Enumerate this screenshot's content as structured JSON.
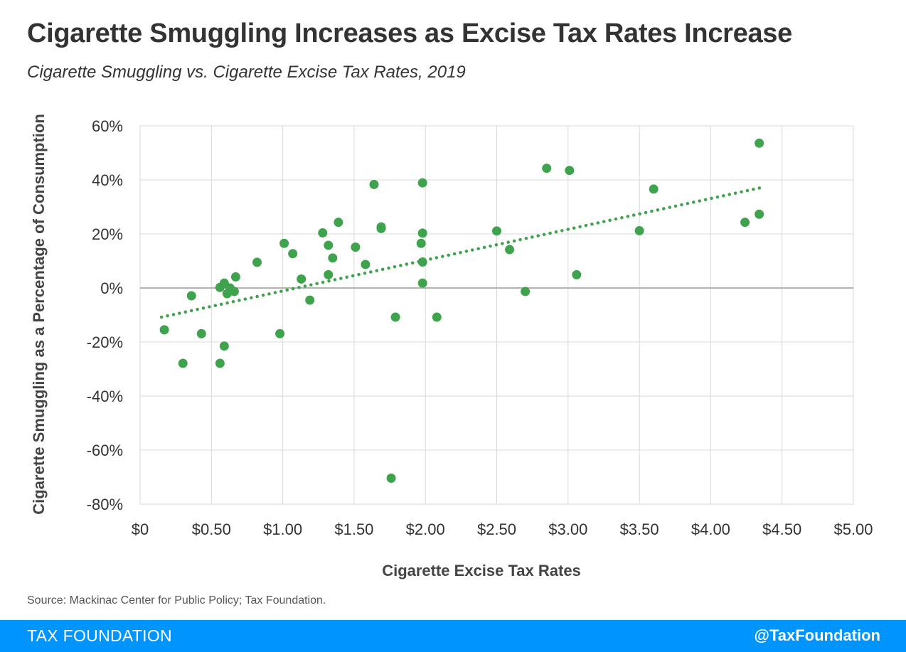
{
  "header": {
    "title": "Cigarette Smuggling Increases as Excise Tax Rates Increase",
    "subtitle": "Cigarette Smuggling vs. Cigarette Excise Tax Rates, 2019"
  },
  "source": "Source: Mackinac Center for Public Policy; Tax Foundation.",
  "footer": {
    "brand": "TAX FOUNDATION",
    "handle": "@TaxFoundation",
    "color": "#0094ff"
  },
  "chart_data": {
    "type": "scatter",
    "xlabel": "Cigarette Excise Tax Rates",
    "ylabel": "Cigarette Smuggling as a Percentage of Consumption",
    "xlim": [
      0,
      5
    ],
    "ylim": [
      -80,
      60
    ],
    "x_ticks": [
      0,
      0.5,
      1,
      1.5,
      2,
      2.5,
      3,
      3.5,
      4,
      4.5,
      5
    ],
    "x_tick_labels": [
      "$0",
      "$0.50",
      "$1.00",
      "$1.50",
      "$2.00",
      "$2.50",
      "$3.00",
      "$3.50",
      "$4.00",
      "$4.50",
      "$5.00"
    ],
    "y_ticks": [
      60,
      40,
      20,
      0,
      -20,
      -40,
      -60,
      -80
    ],
    "y_tick_labels": [
      "60%",
      "40%",
      "20%",
      "0%",
      "-20%",
      "-40%",
      "-60%",
      "-80%"
    ],
    "grid": true,
    "marker_color": "#3fa34d",
    "points": [
      {
        "x": 0.17,
        "y": -15.5
      },
      {
        "x": 0.3,
        "y": -27.9
      },
      {
        "x": 0.36,
        "y": -2.9
      },
      {
        "x": 0.43,
        "y": -16.9
      },
      {
        "x": 0.56,
        "y": -27.9
      },
      {
        "x": 0.56,
        "y": 0.2
      },
      {
        "x": 0.59,
        "y": 1.8
      },
      {
        "x": 0.59,
        "y": -21.5
      },
      {
        "x": 0.61,
        "y": -2.1
      },
      {
        "x": 0.63,
        "y": 0.0
      },
      {
        "x": 0.66,
        "y": -1.3
      },
      {
        "x": 0.67,
        "y": 4.1
      },
      {
        "x": 0.82,
        "y": 9.5
      },
      {
        "x": 0.98,
        "y": -16.9
      },
      {
        "x": 1.01,
        "y": 16.5
      },
      {
        "x": 1.07,
        "y": 12.7
      },
      {
        "x": 1.13,
        "y": 3.3
      },
      {
        "x": 1.19,
        "y": -4.5
      },
      {
        "x": 1.28,
        "y": 20.4
      },
      {
        "x": 1.32,
        "y": 15.8
      },
      {
        "x": 1.32,
        "y": 4.9
      },
      {
        "x": 1.35,
        "y": 11.1
      },
      {
        "x": 1.39,
        "y": 24.3
      },
      {
        "x": 1.51,
        "y": 15.1
      },
      {
        "x": 1.58,
        "y": 8.7
      },
      {
        "x": 1.64,
        "y": 38.3
      },
      {
        "x": 1.69,
        "y": 22.6
      },
      {
        "x": 1.69,
        "y": 22.0
      },
      {
        "x": 1.76,
        "y": -70.4
      },
      {
        "x": 1.79,
        "y": -10.8
      },
      {
        "x": 1.97,
        "y": 16.5
      },
      {
        "x": 1.98,
        "y": 38.9
      },
      {
        "x": 1.98,
        "y": 20.3
      },
      {
        "x": 1.98,
        "y": 9.6
      },
      {
        "x": 1.98,
        "y": 1.8
      },
      {
        "x": 2.08,
        "y": -10.8
      },
      {
        "x": 2.5,
        "y": 21.1
      },
      {
        "x": 2.59,
        "y": 14.2
      },
      {
        "x": 2.7,
        "y": -1.3
      },
      {
        "x": 2.85,
        "y": 44.3
      },
      {
        "x": 3.01,
        "y": 43.5
      },
      {
        "x": 3.06,
        "y": 4.9
      },
      {
        "x": 3.5,
        "y": 21.2
      },
      {
        "x": 3.6,
        "y": 36.6
      },
      {
        "x": 4.24,
        "y": 24.3
      },
      {
        "x": 4.34,
        "y": 53.6
      },
      {
        "x": 4.34,
        "y": 27.3
      }
    ],
    "trendline": {
      "style": "dotted",
      "from": {
        "x": 0.15,
        "y": -10.8
      },
      "to": {
        "x": 4.35,
        "y": 37.1
      }
    }
  }
}
